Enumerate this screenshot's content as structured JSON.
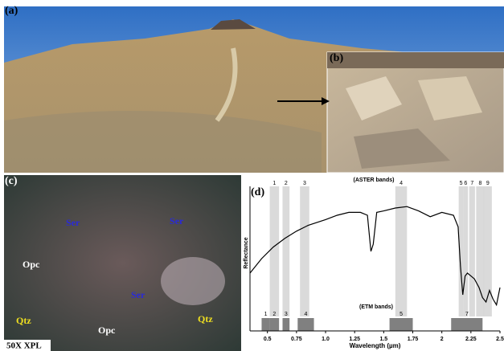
{
  "panels": {
    "a": "(a)",
    "b": "(b)",
    "c": "(c)",
    "d": "(d)"
  },
  "micrograph": {
    "labels": [
      "Ser",
      "Ser",
      "Ser",
      "Opc",
      "Opc",
      "Qtz",
      "Qtz"
    ],
    "scale": "50X XPL"
  },
  "chart_data": {
    "type": "line",
    "xlabel": "Wavelength (µm)",
    "ylabel": "Reflectance",
    "annotations": {
      "aster": "(ASTER bands)",
      "etm": "(ETM bands)"
    },
    "color": "#000000",
    "x": [
      0.35,
      0.45,
      0.55,
      0.65,
      0.75,
      0.85,
      1.0,
      1.1,
      1.2,
      1.3,
      1.36,
      1.39,
      1.41,
      1.44,
      1.5,
      1.6,
      1.7,
      1.8,
      1.9,
      2.0,
      2.1,
      2.14,
      2.16,
      2.18,
      2.2,
      2.22,
      2.25,
      2.28,
      2.32,
      2.35,
      2.38,
      2.41,
      2.44,
      2.47,
      2.5
    ],
    "values": [
      0.4,
      0.5,
      0.58,
      0.64,
      0.69,
      0.73,
      0.77,
      0.8,
      0.82,
      0.82,
      0.8,
      0.55,
      0.6,
      0.82,
      0.83,
      0.85,
      0.86,
      0.83,
      0.79,
      0.82,
      0.8,
      0.72,
      0.45,
      0.25,
      0.38,
      0.4,
      0.38,
      0.36,
      0.3,
      0.23,
      0.2,
      0.28,
      0.22,
      0.18,
      0.3
    ],
    "xlim": [
      0.35,
      2.5
    ],
    "ylim": [
      0,
      1
    ],
    "xticks": [
      0.5,
      0.75,
      {
        "value": 1,
        "label": "1.0"
      },
      1.25,
      1.5,
      1.75,
      2,
      2.25,
      2.5
    ],
    "aster_bands": [
      {
        "label": "1",
        "range": [
          0.52,
          0.6
        ]
      },
      {
        "label": "2",
        "range": [
          0.63,
          0.69
        ]
      },
      {
        "label": "3",
        "range": [
          0.78,
          0.86
        ]
      },
      {
        "label": "4",
        "range": [
          1.6,
          1.7
        ]
      },
      {
        "label": "5",
        "range": [
          2.145,
          2.185
        ]
      },
      {
        "label": "6",
        "range": [
          2.185,
          2.225
        ]
      },
      {
        "label": "7",
        "range": [
          2.235,
          2.285
        ]
      },
      {
        "label": "8",
        "range": [
          2.295,
          2.365
        ]
      },
      {
        "label": "9",
        "range": [
          2.36,
          2.43
        ]
      }
    ],
    "etm_bands": [
      {
        "label": "1",
        "range": [
          0.45,
          0.52
        ]
      },
      {
        "label": "2",
        "range": [
          0.52,
          0.6
        ]
      },
      {
        "label": "3",
        "range": [
          0.63,
          0.69
        ]
      },
      {
        "label": "4",
        "range": [
          0.76,
          0.9
        ]
      },
      {
        "label": "5",
        "range": [
          1.55,
          1.75
        ]
      },
      {
        "label": "7",
        "range": [
          2.08,
          2.35
        ]
      }
    ]
  }
}
